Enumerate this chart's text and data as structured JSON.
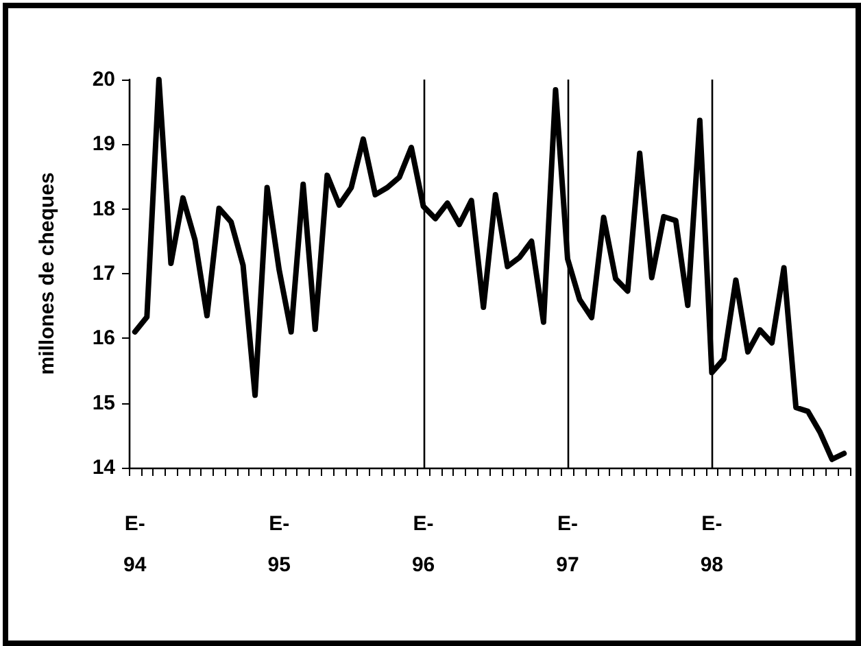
{
  "chart_data": {
    "type": "line",
    "ylabel": "millones de cheques",
    "categories": [
      "E-\n94",
      null,
      null,
      null,
      null,
      null,
      null,
      null,
      null,
      null,
      null,
      null,
      "E-\n95",
      null,
      null,
      null,
      null,
      null,
      null,
      null,
      null,
      null,
      null,
      null,
      "E-\n96",
      null,
      null,
      null,
      null,
      null,
      null,
      null,
      null,
      null,
      null,
      null,
      "E-\n97",
      null,
      null,
      null,
      null,
      null,
      null,
      null,
      null,
      null,
      null,
      null,
      "E-\n98",
      null,
      null,
      null,
      null,
      null,
      null,
      null,
      null,
      null,
      null,
      null
    ],
    "series": [
      {
        "color": "#000000",
        "values": [
          16.1,
          16.33,
          20.0,
          17.16,
          18.17,
          17.52,
          16.35,
          18.01,
          17.8,
          17.13,
          15.12,
          18.33,
          17.06,
          16.1,
          18.38,
          16.14,
          18.52,
          18.06,
          18.33,
          19.08,
          18.22,
          18.33,
          18.49,
          18.95,
          18.04,
          17.85,
          18.09,
          17.76,
          18.13,
          16.48,
          18.22,
          17.11,
          17.25,
          17.5,
          16.25,
          19.84,
          17.23,
          16.6,
          16.32,
          17.87,
          16.92,
          16.73,
          18.86,
          16.94,
          17.88,
          17.82,
          16.51,
          19.37,
          15.47,
          15.68,
          16.9,
          15.79,
          16.13,
          15.93,
          17.09,
          14.93,
          14.87,
          14.55,
          14.13,
          14.22
        ]
      }
    ],
    "ylim": [
      14,
      20
    ],
    "yticks": [
      14,
      15,
      16,
      17,
      18,
      19,
      20
    ],
    "grid": false,
    "marker": "none",
    "line_style": "solid",
    "ref_lines": [
      {
        "axis": "x",
        "value": "E-\n96",
        "color": "#000000"
      },
      {
        "axis": "x",
        "value": "E-\n97",
        "color": "#000000"
      },
      {
        "axis": "x",
        "value": "E-\n98",
        "color": "#000000"
      }
    ]
  }
}
